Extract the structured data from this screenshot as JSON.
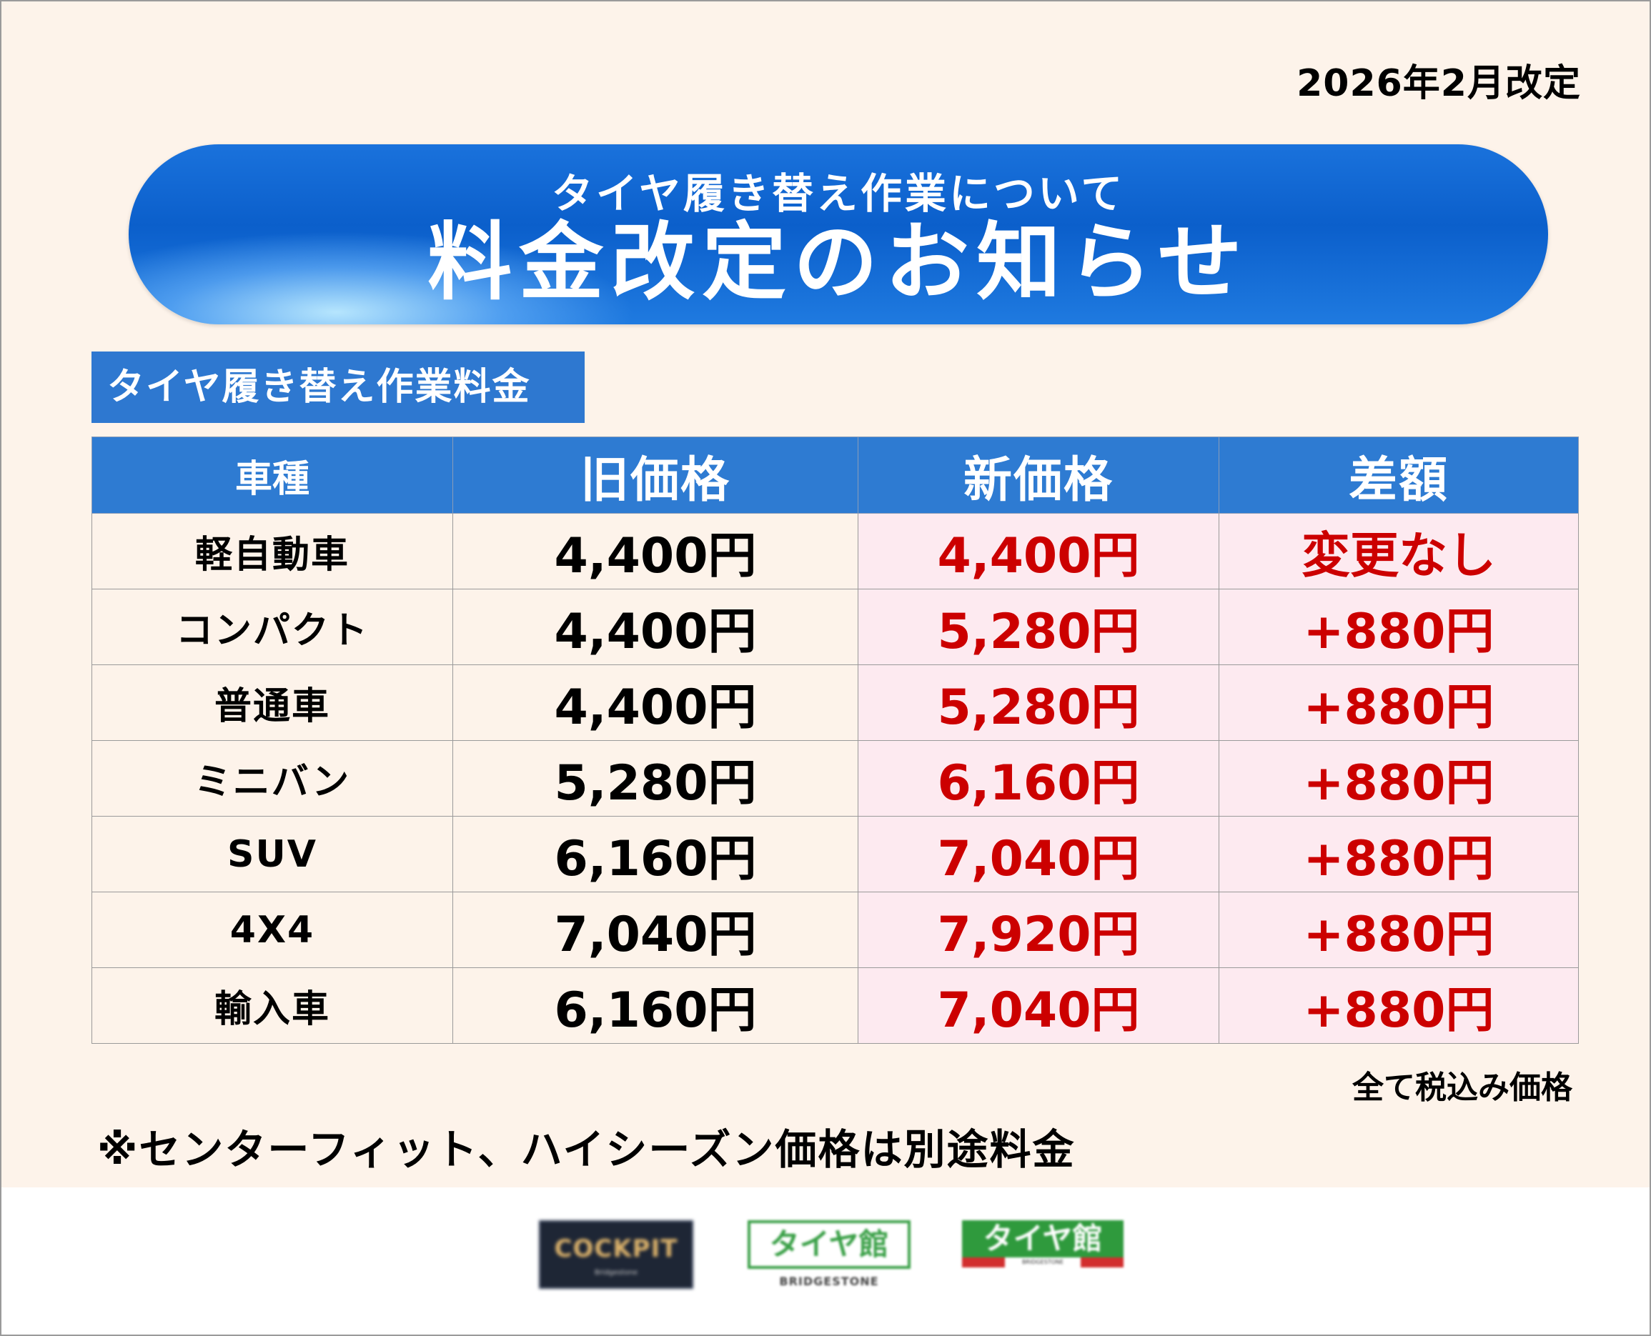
{
  "header": {
    "revision_date": "2026年2月改定",
    "banner_subtitle": "タイヤ履き替え作業について",
    "banner_title": "料金改定のお知らせ"
  },
  "section": {
    "label": "タイヤ履き替え作業料金"
  },
  "table": {
    "headers": [
      "車種",
      "旧価格",
      "新価格",
      "差額"
    ],
    "rows": [
      {
        "vehicle": "軽自動車",
        "old_price": "4,400円",
        "new_price": "4,400円",
        "difference": "変更なし"
      },
      {
        "vehicle": "コンパクト",
        "old_price": "4,400円",
        "new_price": "5,280円",
        "difference": "+880円"
      },
      {
        "vehicle": "普通車",
        "old_price": "4,400円",
        "new_price": "5,280円",
        "difference": "+880円"
      },
      {
        "vehicle": "ミニバン",
        "old_price": "5,280円",
        "new_price": "6,160円",
        "difference": "+880円"
      },
      {
        "vehicle": "SUV",
        "old_price": "6,160円",
        "new_price": "7,040円",
        "difference": "+880円"
      },
      {
        "vehicle": "4X4",
        "old_price": "7,040円",
        "new_price": "7,920円",
        "difference": "+880円"
      },
      {
        "vehicle": "輸入車",
        "old_price": "6,160円",
        "new_price": "7,040円",
        "difference": "+880円"
      }
    ]
  },
  "notes": {
    "tax_note": "全て税込み価格",
    "footnote": "※センターフィット、ハイシーズン価格は別途料金"
  },
  "logos": {
    "cockpit": {
      "name": "COCKPIT",
      "sub": "Bridgestone"
    },
    "tirekan_outline": {
      "name": "タイヤ館",
      "brand": "BRIDGESTONE"
    },
    "tirekan_solid": {
      "name": "タイヤ館",
      "brand": "BRIDGESTONE"
    }
  },
  "colors": {
    "banner_blue": "#0b5fcb",
    "header_blue": "#2e7bd2",
    "price_red": "#cc0000",
    "cream_bg": "#fdf3ea",
    "pink_bg": "#fdeaf0"
  }
}
